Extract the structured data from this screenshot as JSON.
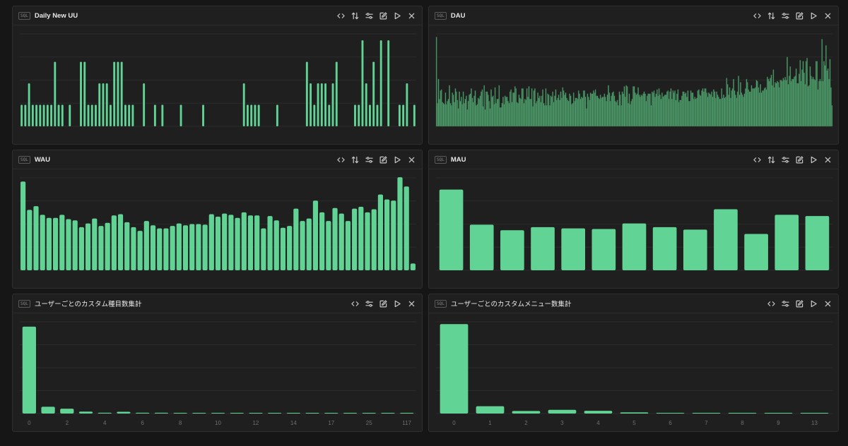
{
  "colors": {
    "bar": "#61d394",
    "bar_dau": "#4e9a6a",
    "grid": "#2b2b2b",
    "background": "#161616"
  },
  "toolbar_icons": [
    "code-icon",
    "sort-icon",
    "sliders-icon",
    "edit-icon",
    "play-icon",
    "close-icon"
  ],
  "sql_badge": "SQL",
  "panels": [
    {
      "id": "daily-new-uu",
      "title": "Daily New UU",
      "chart_data": {
        "type": "bar",
        "values": [
          1,
          1,
          2,
          1,
          1,
          1,
          1,
          1,
          1,
          3,
          1,
          1,
          0,
          1,
          0,
          0,
          3,
          3,
          1,
          1,
          1,
          2,
          2,
          2,
          1,
          3,
          3,
          3,
          1,
          1,
          1,
          0,
          0,
          2,
          0,
          0,
          1,
          0,
          1,
          0,
          0,
          0,
          0,
          1,
          0,
          0,
          0,
          0,
          0,
          1,
          0,
          0,
          0,
          0,
          0,
          0,
          0,
          0,
          0,
          0,
          2,
          1,
          1,
          1,
          1,
          0,
          0,
          0,
          0,
          1,
          0,
          0,
          0,
          0,
          0,
          0,
          0,
          3,
          2,
          1,
          2,
          2,
          2,
          1,
          2,
          3,
          0,
          0,
          0,
          0,
          1,
          1,
          4,
          2,
          1,
          3,
          1,
          4,
          0,
          4,
          0,
          0,
          1,
          1,
          2,
          0,
          1
        ],
        "ylim": [
          0,
          4.3
        ],
        "gridlines": 4
      }
    },
    {
      "id": "dau",
      "title": "DAU",
      "chart_data": {
        "type": "bar",
        "values": [
          8.5,
          2.2,
          4.5,
          2.6,
          3.4,
          3.5,
          2.3,
          2.2,
          2.1,
          3.2,
          2.1,
          2.4,
          2.6,
          3.9,
          2.2,
          2.0,
          3.2,
          3.0,
          2.3,
          3.6,
          3.3,
          2.5,
          1.7,
          3.3,
          2.4,
          2.8,
          2.1,
          3.3,
          2.2,
          2.6,
          2.9,
          1.6,
          2.4,
          3.0,
          3.1,
          3.6,
          2.7,
          2.3,
          2.9,
          3.4,
          2.0,
          2.1,
          2.7,
          2.6,
          2.9,
          3.3,
          3.5,
          1.9,
          3.9,
          1.6,
          3.3,
          3.3,
          3.0,
          2.4,
          1.7,
          3.5,
          2.8,
          2.9,
          2.1,
          3.7,
          2.2,
          2.6,
          2.6,
          3.9,
          1.8,
          1.8,
          2.2,
          2.8,
          2.1,
          2.9,
          2.8,
          2.8,
          2.4,
          2.2,
          3.3,
          3.5,
          2.3,
          3.2,
          3.2,
          3.8,
          3.6,
          2.3,
          2.2,
          3.0,
          2.7,
          2.6,
          3.6,
          3.6,
          2.2,
          2.6,
          2.5,
          3.6,
          2.8,
          3.8,
          2.6,
          2.6,
          3.6,
          1.9,
          3.4,
          3.6,
          2.2,
          2.4,
          3.2,
          2.7,
          2.9,
          2.3,
          2.9,
          3.5,
          2.2,
          2.0,
          3.6,
          2.0,
          3.1,
          3.0,
          2.0,
          2.9,
          2.8,
          3.3,
          2.3,
          2.9,
          3.5,
          2.5,
          2.7,
          3.0,
          2.5,
          3.3,
          2.7,
          3.7,
          3.4,
          3.0,
          3.2,
          2.7,
          2.5,
          2.4,
          3.1,
          2.9,
          2.1,
          2.2,
          3.2,
          2.4,
          2.7,
          2.7,
          2.6,
          3.4,
          3.1,
          2.6,
          2.8,
          2.7,
          3.4,
          3.4,
          2.8,
          1.7,
          3.1,
          2.8,
          2.5,
          3.2,
          3.1,
          3.1,
          3.4,
          3.2,
          3.5,
          2.9,
          2.9,
          2.7,
          2.6,
          3.0,
          2.7,
          2.8,
          2.8,
          3.1,
          2.8,
          2.4,
          3.0,
          3.9,
          3.2,
          2.4,
          2.9,
          3.2,
          3.3,
          2.9,
          2.4,
          2.3,
          2.5,
          2.0,
          3.3,
          3.0,
          2.0,
          3.3,
          3.1,
          3.8,
          2.8,
          3.9,
          3.8,
          2.2,
          3.1,
          2.1,
          2.4,
          2.6,
          3.8,
          3.8,
          3.2,
          3.0,
          3.1,
          3.7,
          3.0,
          2.8,
          3.0,
          2.9,
          3.1,
          3.3,
          3.1,
          2.4,
          2.9,
          3.1,
          3.1,
          3.1,
          2.0,
          3.3,
          3.2,
          3.4,
          2.8,
          3.1,
          3.5,
          2.9,
          3.6,
          3.0,
          2.6,
          3.2,
          2.8,
          2.9,
          3.0,
          3.0,
          3.3,
          3.4,
          2.6,
          3.3,
          3.6,
          2.6,
          3.4,
          3.2,
          3.4,
          2.5,
          3.1,
          3.5,
          2.3,
          2.5,
          2.5,
          2.9,
          3.3,
          3.3,
          3.1,
          3.2,
          2.8,
          3.4,
          2.4,
          2.4,
          3.4,
          3.2,
          3.2,
          2.6,
          2.8,
          2.6,
          2.7,
          3.4,
          3.5,
          3.0,
          2.9,
          3.4,
          3.6,
          3.3,
          3.6,
          3.6,
          3.2,
          2.8,
          3.2,
          3.1,
          3.0,
          3.3,
          2.8,
          3.5,
          3.3,
          2.7,
          3.3,
          3.0,
          2.8,
          2.6,
          2.6,
          3.6,
          2.7,
          3.0,
          2.7,
          2.8,
          4.6,
          4.0,
          3.0,
          3.7,
          2.7,
          3.4,
          3.6,
          4.5,
          3.4,
          3.0,
          2.7,
          3.3,
          4.8,
          3.0,
          4.2,
          3.2,
          3.0,
          2.8,
          3.1,
          3.6,
          4.5,
          4.2,
          3.5,
          3.3,
          3.3,
          3.9,
          3.6,
          3.6,
          3.6,
          3.7,
          4.4,
          4.3,
          3.7,
          3.2,
          4.0,
          3.2,
          3.4,
          3.4,
          3.6,
          3.7,
          3.5,
          4.7,
          4.5,
          4.3,
          4.6,
          4.9,
          3.9,
          5.4,
          3.7,
          4.2,
          4.1,
          4.3,
          4.2,
          3.7,
          4.4,
          4.4,
          4.3,
          4.6,
          4.4,
          4.7,
          4.4,
          6.6,
          4.0,
          4.8,
          5.7,
          4.3,
          4.5,
          4.5,
          4.7,
          4.8,
          5.5,
          4.1,
          4.1,
          5.0,
          6.3,
          4.3,
          5.4,
          6.2,
          5.1,
          4.0,
          6.2,
          6.5,
          3.8,
          3.9,
          5.7,
          4.8,
          4.5,
          4.7,
          4.5,
          4.4,
          6.2,
          6.2,
          3.5,
          4.3,
          4.5,
          4.3,
          8.3,
          4.3,
          6.2,
          5.8,
          7.7,
          5.3,
          5.5,
          4.5,
          6.4,
          3.7,
          2.0
        ],
        "ylim": [
          0,
          8.8
        ],
        "gridlines": 4
      }
    },
    {
      "id": "wau",
      "title": "WAU",
      "chart_data": {
        "type": "bar",
        "values": [
          144,
          98,
          104,
          90,
          85,
          85,
          90,
          83,
          81,
          70,
          76,
          84,
          72,
          77,
          89,
          91,
          78,
          70,
          64,
          80,
          73,
          68,
          68,
          72,
          76,
          73,
          75,
          75,
          74,
          91,
          87,
          92,
          90,
          85,
          94,
          89,
          89,
          68,
          88,
          81,
          69,
          72,
          100,
          80,
          84,
          113,
          94,
          80,
          101,
          92,
          80,
          100,
          103,
          94,
          99,
          123,
          115,
          113,
          151,
          136,
          11
        ],
        "ylim": [
          0,
          150
        ],
        "gridlines": 4
      }
    },
    {
      "id": "mau",
      "title": "MAU",
      "chart_data": {
        "type": "bar",
        "values": [
          131,
          74,
          65,
          70,
          68,
          67,
          76,
          70,
          66,
          99,
          59,
          90,
          88
        ],
        "ylim": [
          0,
          150
        ],
        "gridlines": 4
      }
    },
    {
      "id": "custom-items",
      "title": "ユーザーごとのカスタム種目数集計",
      "chart_data": {
        "type": "bar",
        "categories": [
          "0",
          "",
          "2",
          "",
          "4",
          "",
          "6",
          "",
          "8",
          "",
          "10",
          "",
          "12",
          "",
          "14",
          "",
          "17",
          "",
          "25",
          "",
          "117"
        ],
        "tick_labels": [
          "0",
          "2",
          "4",
          "6",
          "8",
          "10",
          "12",
          "14",
          "17",
          "25",
          "117"
        ],
        "values": [
          900,
          70,
          50,
          20,
          8,
          18,
          8,
          8,
          4,
          3,
          3,
          4,
          2,
          2,
          2,
          2,
          2,
          2,
          2,
          2,
          2
        ],
        "ylim": [
          0,
          950
        ],
        "gridlines": 4
      }
    },
    {
      "id": "custom-menus",
      "title": "ユーザーごとのカスタムメニュー数集計",
      "chart_data": {
        "type": "bar",
        "categories": [
          "0",
          "1",
          "2",
          "3",
          "4",
          "5",
          "6",
          "7",
          "8",
          "9",
          "13"
        ],
        "tick_labels": [
          "0",
          "1",
          "2",
          "3",
          "4",
          "5",
          "6",
          "7",
          "8",
          "9",
          "13"
        ],
        "values": [
          780,
          64,
          22,
          32,
          24,
          10,
          5,
          6,
          5,
          5,
          4
        ],
        "ylim": [
          0,
          800
        ],
        "gridlines": 4
      }
    }
  ]
}
